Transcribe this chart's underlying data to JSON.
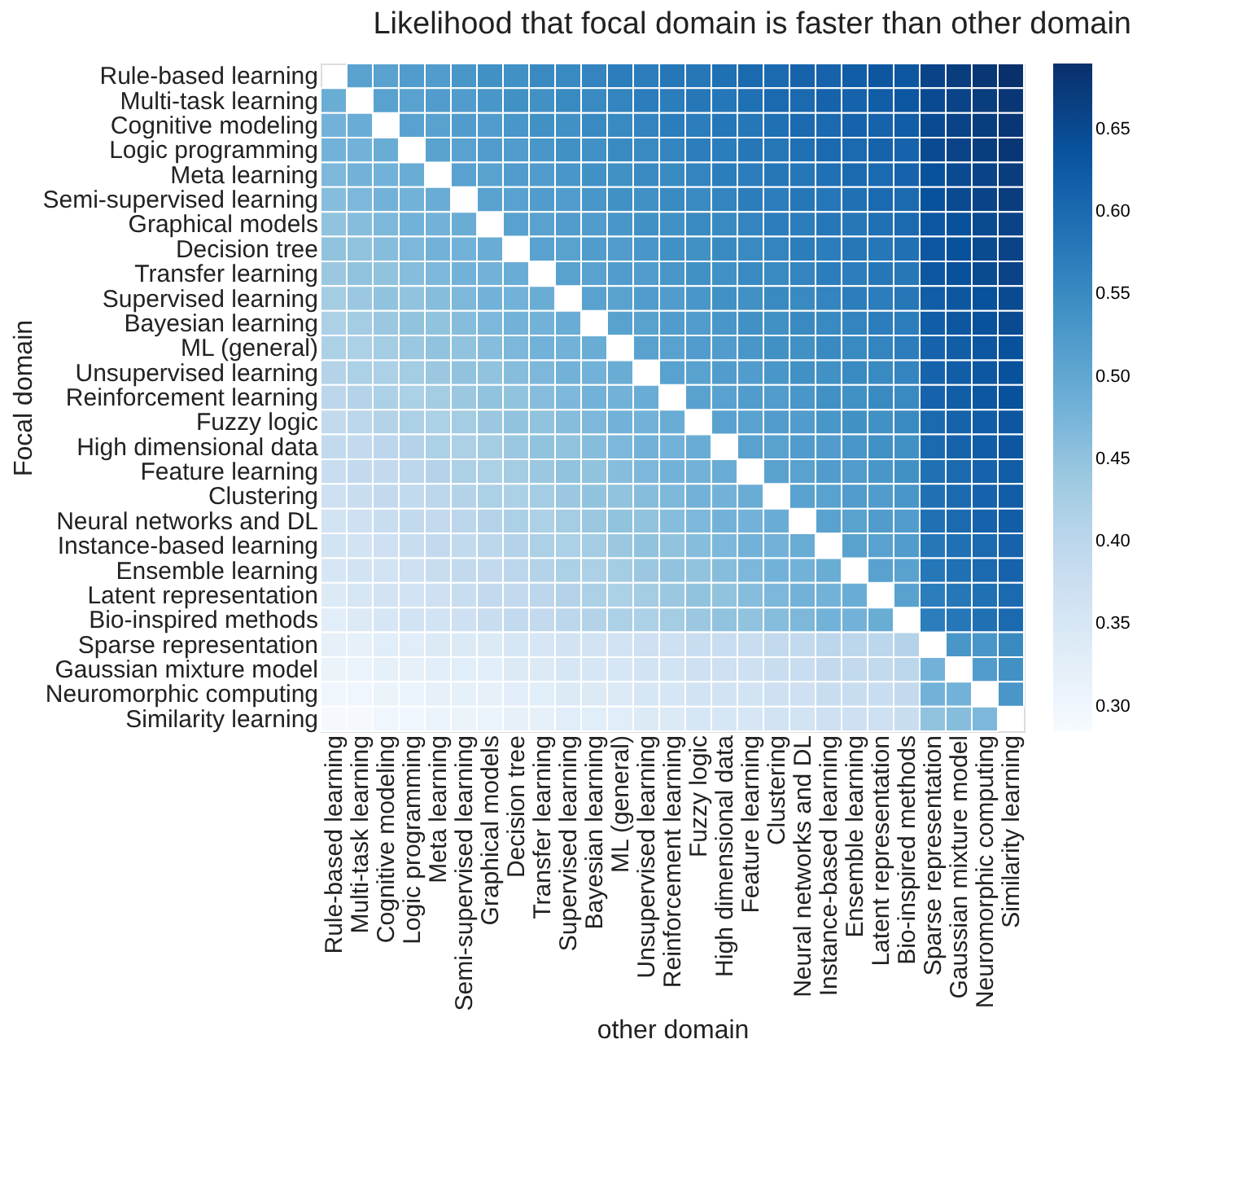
{
  "chart_data": {
    "type": "heatmap",
    "title": "Likelihood that focal domain is faster than other domain",
    "xlabel": "other domain",
    "ylabel": "Focal domain",
    "categories": [
      "Rule-based learning",
      "Multi-task learning",
      "Cognitive modeling",
      "Logic programming",
      "Meta learning",
      "Semi-supervised learning",
      "Graphical models",
      "Decision tree",
      "Transfer learning",
      "Supervised learning",
      "Bayesian learning",
      "ML (general)",
      "Unsupervised learning",
      "Reinforcement learning",
      "Fuzzy logic",
      "High dimensional data",
      "Feature learning",
      "Clustering",
      "Neural networks and DL",
      "Instance-based learning",
      "Ensemble learning",
      "Latent representation",
      "Bio-inspired methods",
      "Sparse representation",
      "Gaussian mixture model",
      "Neuromorphic computing",
      "Similarity learning"
    ],
    "y_categories": [
      "Rule-based learning",
      "Multi-task learning",
      "Cognitive modeling",
      "Logic programming",
      "Meta learning",
      "Semi-supervised learning",
      "Graphical models",
      "Decision tree",
      "Transfer learning",
      "Supervised learning",
      "Bayesian learning",
      "ML (general)",
      "Unsupervised learning",
      "Reinforcement learning",
      "Fuzzy logic",
      "High dimensional data",
      "Feature learning",
      "Clustering",
      "Neural networks and DL",
      "Instance-based learning",
      "Ensemble learning",
      "Latent representation",
      "Bio-inspired methods",
      "Sparse representation",
      "Gaussian mixture model",
      "Neuromorphic computing",
      "Similarity learning"
    ],
    "cells": [
      [
        null,
        0.51,
        0.51,
        0.52,
        0.52,
        0.53,
        0.54,
        0.54,
        0.55,
        0.55,
        0.56,
        0.57,
        0.57,
        0.58,
        0.58,
        0.59,
        0.6,
        0.6,
        0.61,
        0.61,
        0.62,
        0.63,
        0.63,
        0.66,
        0.67,
        0.68,
        0.69
      ],
      [
        0.49,
        null,
        0.51,
        0.51,
        0.52,
        0.52,
        0.53,
        0.54,
        0.54,
        0.55,
        0.55,
        0.56,
        0.57,
        0.57,
        0.58,
        0.58,
        0.59,
        0.6,
        0.6,
        0.61,
        0.61,
        0.62,
        0.63,
        0.65,
        0.66,
        0.67,
        0.68
      ],
      [
        0.48,
        0.49,
        null,
        0.51,
        0.51,
        0.52,
        0.52,
        0.53,
        0.54,
        0.54,
        0.55,
        0.55,
        0.56,
        0.57,
        0.57,
        0.58,
        0.58,
        0.59,
        0.6,
        0.6,
        0.61,
        0.61,
        0.62,
        0.65,
        0.66,
        0.67,
        0.68
      ],
      [
        0.48,
        0.48,
        0.49,
        null,
        0.51,
        0.51,
        0.52,
        0.52,
        0.53,
        0.54,
        0.54,
        0.55,
        0.55,
        0.56,
        0.57,
        0.57,
        0.58,
        0.58,
        0.59,
        0.6,
        0.6,
        0.61,
        0.61,
        0.65,
        0.66,
        0.67,
        0.68
      ],
      [
        0.47,
        0.48,
        0.48,
        0.49,
        null,
        0.51,
        0.51,
        0.52,
        0.52,
        0.53,
        0.54,
        0.54,
        0.55,
        0.55,
        0.56,
        0.57,
        0.57,
        0.58,
        0.58,
        0.59,
        0.6,
        0.6,
        0.61,
        0.64,
        0.65,
        0.66,
        0.67
      ],
      [
        0.46,
        0.47,
        0.48,
        0.48,
        0.49,
        null,
        0.51,
        0.51,
        0.52,
        0.52,
        0.53,
        0.54,
        0.54,
        0.55,
        0.55,
        0.56,
        0.57,
        0.57,
        0.58,
        0.58,
        0.59,
        0.6,
        0.6,
        0.64,
        0.65,
        0.66,
        0.67
      ],
      [
        0.45,
        0.46,
        0.47,
        0.48,
        0.48,
        0.49,
        null,
        0.51,
        0.51,
        0.52,
        0.52,
        0.53,
        0.54,
        0.54,
        0.55,
        0.55,
        0.56,
        0.57,
        0.57,
        0.58,
        0.58,
        0.59,
        0.6,
        0.63,
        0.64,
        0.65,
        0.66
      ],
      [
        0.45,
        0.45,
        0.46,
        0.47,
        0.48,
        0.48,
        0.49,
        null,
        0.51,
        0.51,
        0.52,
        0.52,
        0.53,
        0.54,
        0.54,
        0.55,
        0.55,
        0.56,
        0.57,
        0.57,
        0.58,
        0.58,
        0.59,
        0.63,
        0.64,
        0.65,
        0.66
      ],
      [
        0.44,
        0.45,
        0.45,
        0.46,
        0.47,
        0.48,
        0.48,
        0.49,
        null,
        0.51,
        0.51,
        0.52,
        0.52,
        0.53,
        0.54,
        0.54,
        0.55,
        0.55,
        0.56,
        0.57,
        0.57,
        0.58,
        0.58,
        0.63,
        0.64,
        0.65,
        0.66
      ],
      [
        0.43,
        0.44,
        0.45,
        0.45,
        0.46,
        0.47,
        0.48,
        0.48,
        0.49,
        null,
        0.51,
        0.51,
        0.52,
        0.52,
        0.53,
        0.54,
        0.54,
        0.55,
        0.55,
        0.56,
        0.57,
        0.57,
        0.58,
        0.62,
        0.63,
        0.64,
        0.65
      ],
      [
        0.42,
        0.43,
        0.44,
        0.45,
        0.45,
        0.46,
        0.47,
        0.48,
        0.48,
        0.49,
        null,
        0.51,
        0.51,
        0.52,
        0.52,
        0.53,
        0.54,
        0.54,
        0.55,
        0.55,
        0.56,
        0.57,
        0.57,
        0.62,
        0.63,
        0.64,
        0.65
      ],
      [
        0.42,
        0.42,
        0.43,
        0.44,
        0.45,
        0.45,
        0.46,
        0.47,
        0.48,
        0.48,
        0.49,
        null,
        0.51,
        0.51,
        0.52,
        0.52,
        0.53,
        0.54,
        0.54,
        0.55,
        0.55,
        0.56,
        0.57,
        0.61,
        0.62,
        0.63,
        0.64
      ],
      [
        0.41,
        0.42,
        0.42,
        0.43,
        0.44,
        0.45,
        0.45,
        0.46,
        0.47,
        0.48,
        0.48,
        0.49,
        null,
        0.51,
        0.51,
        0.52,
        0.52,
        0.53,
        0.54,
        0.54,
        0.55,
        0.55,
        0.56,
        0.61,
        0.62,
        0.63,
        0.64
      ],
      [
        0.4,
        0.41,
        0.42,
        0.42,
        0.43,
        0.44,
        0.45,
        0.45,
        0.46,
        0.47,
        0.48,
        0.48,
        0.49,
        null,
        0.51,
        0.51,
        0.52,
        0.52,
        0.53,
        0.54,
        0.54,
        0.55,
        0.55,
        0.61,
        0.62,
        0.63,
        0.64
      ],
      [
        0.39,
        0.4,
        0.41,
        0.42,
        0.42,
        0.43,
        0.44,
        0.45,
        0.45,
        0.46,
        0.47,
        0.48,
        0.48,
        0.49,
        null,
        0.51,
        0.51,
        0.52,
        0.52,
        0.53,
        0.54,
        0.54,
        0.55,
        0.6,
        0.61,
        0.62,
        0.63
      ],
      [
        0.39,
        0.39,
        0.4,
        0.41,
        0.42,
        0.42,
        0.43,
        0.44,
        0.45,
        0.45,
        0.46,
        0.47,
        0.48,
        0.48,
        0.49,
        null,
        0.51,
        0.51,
        0.52,
        0.52,
        0.53,
        0.54,
        0.54,
        0.6,
        0.61,
        0.62,
        0.63
      ],
      [
        0.38,
        0.39,
        0.39,
        0.4,
        0.41,
        0.42,
        0.42,
        0.43,
        0.44,
        0.45,
        0.45,
        0.46,
        0.47,
        0.48,
        0.48,
        0.49,
        null,
        0.51,
        0.51,
        0.52,
        0.52,
        0.53,
        0.54,
        0.59,
        0.6,
        0.61,
        0.62
      ],
      [
        0.37,
        0.38,
        0.39,
        0.39,
        0.4,
        0.41,
        0.42,
        0.42,
        0.43,
        0.44,
        0.45,
        0.45,
        0.46,
        0.47,
        0.48,
        0.48,
        0.49,
        null,
        0.51,
        0.51,
        0.52,
        0.52,
        0.53,
        0.59,
        0.6,
        0.61,
        0.62
      ],
      [
        0.36,
        0.37,
        0.38,
        0.39,
        0.39,
        0.4,
        0.41,
        0.42,
        0.42,
        0.43,
        0.44,
        0.45,
        0.45,
        0.46,
        0.47,
        0.48,
        0.48,
        0.49,
        null,
        0.51,
        0.51,
        0.52,
        0.52,
        0.59,
        0.6,
        0.61,
        0.62
      ],
      [
        0.36,
        0.36,
        0.37,
        0.38,
        0.39,
        0.39,
        0.4,
        0.41,
        0.42,
        0.42,
        0.43,
        0.44,
        0.45,
        0.45,
        0.46,
        0.47,
        0.48,
        0.48,
        0.49,
        null,
        0.51,
        0.51,
        0.52,
        0.58,
        0.59,
        0.6,
        0.61
      ],
      [
        0.35,
        0.36,
        0.36,
        0.37,
        0.38,
        0.39,
        0.39,
        0.4,
        0.41,
        0.42,
        0.42,
        0.43,
        0.44,
        0.45,
        0.45,
        0.46,
        0.47,
        0.48,
        0.48,
        0.49,
        null,
        0.51,
        0.51,
        0.58,
        0.59,
        0.6,
        0.61
      ],
      [
        0.34,
        0.35,
        0.36,
        0.36,
        0.37,
        0.38,
        0.39,
        0.39,
        0.4,
        0.41,
        0.42,
        0.42,
        0.43,
        0.44,
        0.45,
        0.45,
        0.46,
        0.47,
        0.48,
        0.48,
        0.49,
        null,
        0.51,
        0.57,
        0.58,
        0.59,
        0.6
      ],
      [
        0.33,
        0.34,
        0.35,
        0.36,
        0.36,
        0.37,
        0.38,
        0.39,
        0.39,
        0.4,
        0.41,
        0.42,
        0.42,
        0.43,
        0.44,
        0.45,
        0.45,
        0.46,
        0.47,
        0.48,
        0.48,
        0.49,
        null,
        0.57,
        0.58,
        0.59,
        0.6
      ],
      [
        0.32,
        0.32,
        0.33,
        0.33,
        0.34,
        0.34,
        0.34,
        0.35,
        0.35,
        0.36,
        0.36,
        0.36,
        0.37,
        0.37,
        0.38,
        0.38,
        0.38,
        0.39,
        0.39,
        0.4,
        0.4,
        0.4,
        0.41,
        null,
        0.53,
        0.53,
        0.55
      ],
      [
        0.31,
        0.31,
        0.32,
        0.32,
        0.33,
        0.33,
        0.33,
        0.34,
        0.34,
        0.35,
        0.35,
        0.35,
        0.36,
        0.36,
        0.37,
        0.37,
        0.37,
        0.38,
        0.38,
        0.39,
        0.39,
        0.39,
        0.4,
        0.48,
        null,
        0.52,
        0.54
      ],
      [
        0.3,
        0.3,
        0.31,
        0.31,
        0.32,
        0.32,
        0.32,
        0.33,
        0.33,
        0.34,
        0.34,
        0.34,
        0.35,
        0.35,
        0.36,
        0.36,
        0.36,
        0.37,
        0.37,
        0.38,
        0.38,
        0.38,
        0.39,
        0.48,
        0.48,
        null,
        0.53
      ],
      [
        0.29,
        0.29,
        0.3,
        0.3,
        0.31,
        0.31,
        0.31,
        0.32,
        0.32,
        0.33,
        0.33,
        0.33,
        0.34,
        0.34,
        0.35,
        0.35,
        0.35,
        0.36,
        0.36,
        0.37,
        0.37,
        0.37,
        0.38,
        0.45,
        0.46,
        0.47,
        null
      ]
    ],
    "clim": [
      0.285,
      0.69
    ],
    "cticks": [
      {
        "value": 0.3,
        "label": "0.30"
      },
      {
        "value": 0.35,
        "label": "0.35"
      },
      {
        "value": 0.4,
        "label": "0.40"
      },
      {
        "value": 0.45,
        "label": "0.45"
      },
      {
        "value": 0.5,
        "label": "0.50"
      },
      {
        "value": 0.55,
        "label": "0.55"
      },
      {
        "value": 0.6,
        "label": "0.60"
      },
      {
        "value": 0.65,
        "label": "0.65"
      }
    ]
  }
}
